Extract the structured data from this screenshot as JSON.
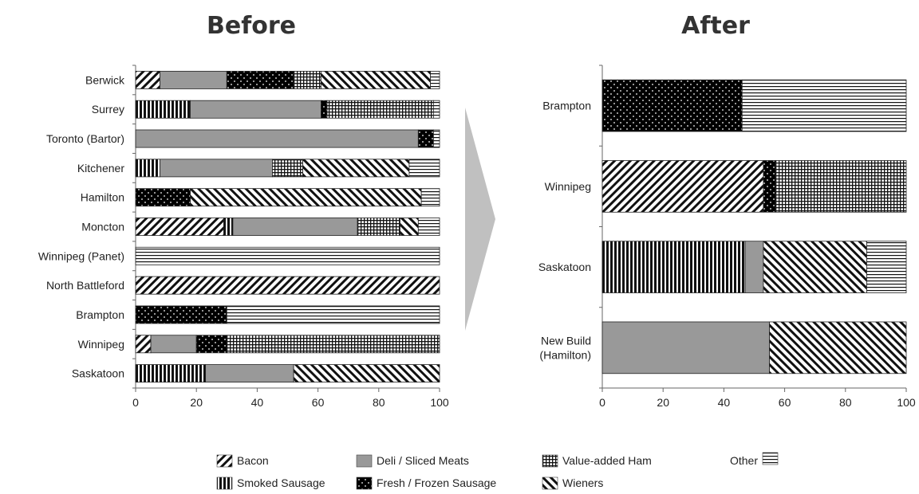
{
  "chart_data": [
    {
      "type": "bar",
      "orientation": "horizontal",
      "stacked": true,
      "title": "Before",
      "categories": [
        "Berwick",
        "Surrey",
        "Toronto (Bartor)",
        "Kitchener",
        "Hamilton",
        "Moncton",
        "Winnipeg (Panet)",
        "North Battleford",
        "Brampton",
        "Winnipeg",
        "Saskatoon"
      ],
      "xlim": [
        0,
        100
      ],
      "xticks": [
        0,
        20,
        40,
        60,
        80,
        100
      ],
      "grid": false,
      "series": [
        {
          "name": "Bacon",
          "values": [
            8,
            0,
            0,
            0,
            0,
            29,
            0,
            100,
            0,
            5,
            0
          ]
        },
        {
          "name": "Smoked Sausage",
          "values": [
            0,
            18,
            0,
            8,
            0,
            3,
            0,
            0,
            0,
            0,
            23
          ]
        },
        {
          "name": "Deli / Sliced Meats",
          "values": [
            22,
            43,
            93,
            37,
            0,
            41,
            0,
            0,
            0,
            15,
            29
          ]
        },
        {
          "name": "Fresh / Frozen Sausage",
          "values": [
            22,
            2,
            5,
            0,
            18,
            0,
            0,
            0,
            30,
            10,
            0
          ]
        },
        {
          "name": "Value-added Ham",
          "values": [
            9,
            35,
            0,
            10,
            0,
            14,
            0,
            0,
            0,
            70,
            0
          ]
        },
        {
          "name": "Wieners",
          "values": [
            36,
            0,
            0,
            35,
            76,
            6,
            0,
            0,
            0,
            0,
            48
          ]
        },
        {
          "name": "Other",
          "values": [
            3,
            2,
            2,
            10,
            6,
            7,
            100,
            0,
            70,
            0,
            0
          ]
        }
      ]
    },
    {
      "type": "bar",
      "orientation": "horizontal",
      "stacked": true,
      "title": "After",
      "categories": [
        "Brampton",
        "Winnipeg",
        "Saskatoon",
        "New Build (Hamilton)"
      ],
      "xlim": [
        0,
        100
      ],
      "xticks": [
        0,
        20,
        40,
        60,
        80,
        100
      ],
      "grid": false,
      "series": [
        {
          "name": "Bacon",
          "values": [
            0,
            53,
            0,
            0
          ]
        },
        {
          "name": "Smoked Sausage",
          "values": [
            0,
            0,
            47,
            0
          ]
        },
        {
          "name": "Deli / Sliced Meats",
          "values": [
            0,
            0,
            6,
            55
          ]
        },
        {
          "name": "Fresh / Frozen Sausage",
          "values": [
            46,
            4,
            0,
            0
          ]
        },
        {
          "name": "Value-added Ham",
          "values": [
            0,
            43,
            0,
            0
          ]
        },
        {
          "name": "Wieners",
          "values": [
            0,
            0,
            34,
            45
          ]
        },
        {
          "name": "Other",
          "values": [
            54,
            0,
            13,
            0
          ]
        }
      ]
    }
  ],
  "legend": {
    "placement": "bottom",
    "items": [
      "Bacon",
      "Deli / Sliced Meats",
      "Value-added  Ham",
      "Other",
      "Smoked Sausage",
      "Fresh / Frozen Sausage",
      "Wieners"
    ]
  }
}
